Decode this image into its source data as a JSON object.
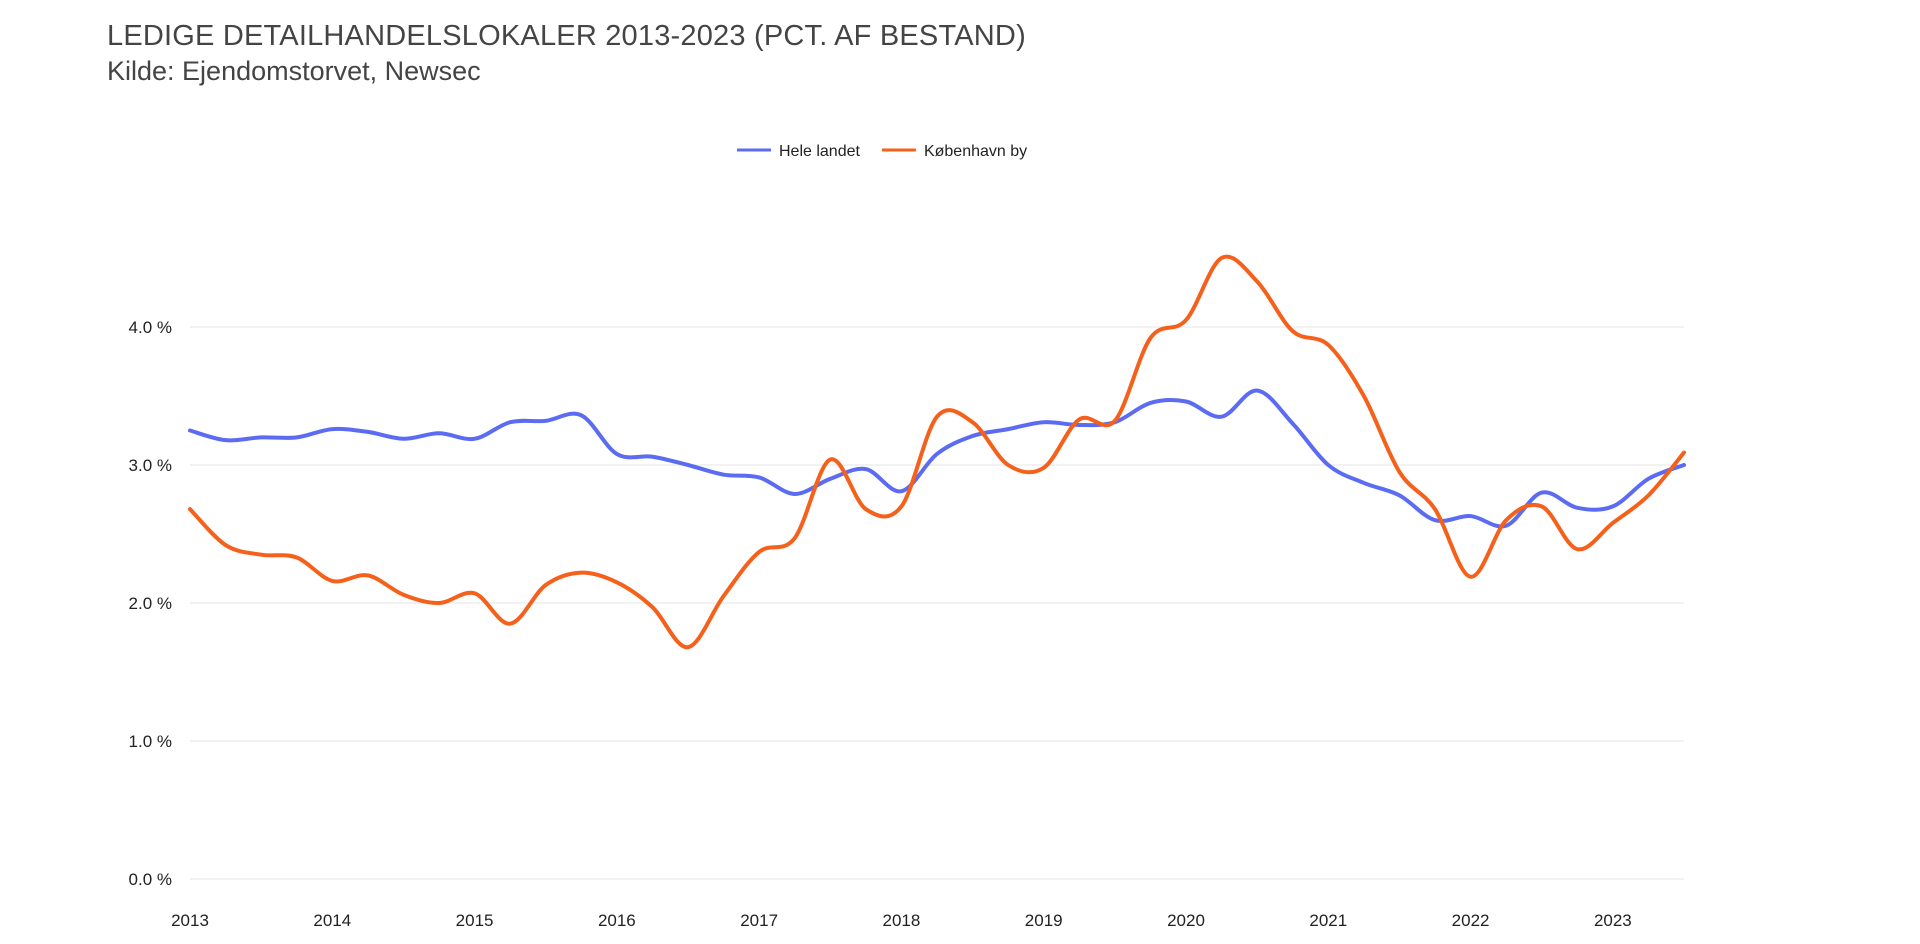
{
  "chart_data": {
    "type": "line",
    "title": "LEDIGE DETAILHANDELSLOKALER 2013-2023 (PCT. AF BESTAND)",
    "subtitle": "Kilde: Ejendomstorvet, Newsec",
    "xlabel": "",
    "ylabel": "",
    "xlim": [
      2013,
      2023.5
    ],
    "ylim": [
      0,
      4.8
    ],
    "grid": true,
    "legend_position": "top-center",
    "y_ticks": [
      0,
      1,
      2,
      3,
      4
    ],
    "y_tick_labels": [
      "0.0 %",
      "1.0 %",
      "2.0 %",
      "3.0 %",
      "4.0 %"
    ],
    "x_ticks": [
      2013,
      2014,
      2015,
      2016,
      2017,
      2018,
      2019,
      2020,
      2021,
      2022,
      2023
    ],
    "x_tick_labels": [
      "2013",
      "2014",
      "2015",
      "2016",
      "2017",
      "2018",
      "2019",
      "2020",
      "2021",
      "2022",
      "2023"
    ],
    "x": [
      2013.0,
      2013.25,
      2013.5,
      2013.75,
      2014.0,
      2014.25,
      2014.5,
      2014.75,
      2015.0,
      2015.25,
      2015.5,
      2015.75,
      2016.0,
      2016.25,
      2016.5,
      2016.75,
      2017.0,
      2017.25,
      2017.5,
      2017.75,
      2018.0,
      2018.25,
      2018.5,
      2018.75,
      2019.0,
      2019.25,
      2019.5,
      2019.75,
      2020.0,
      2020.25,
      2020.5,
      2020.75,
      2021.0,
      2021.25,
      2021.5,
      2021.75,
      2022.0,
      2022.25,
      2022.5,
      2022.75,
      2023.0,
      2023.25,
      2023.5
    ],
    "series": [
      {
        "name": "Hele landet",
        "color": "#5b6cf2",
        "values": [
          3.25,
          3.18,
          3.2,
          3.2,
          3.26,
          3.24,
          3.19,
          3.23,
          3.19,
          3.31,
          3.32,
          3.36,
          3.08,
          3.06,
          3.0,
          2.93,
          2.91,
          2.79,
          2.9,
          2.97,
          2.81,
          3.08,
          3.21,
          3.26,
          3.31,
          3.29,
          3.31,
          3.45,
          3.46,
          3.35,
          3.54,
          3.3,
          3.0,
          2.87,
          2.78,
          2.6,
          2.63,
          2.56,
          2.8,
          2.69,
          2.7,
          2.9,
          3.0
        ]
      },
      {
        "name": "København by",
        "color": "#f5601a",
        "values": [
          2.68,
          2.42,
          2.35,
          2.33,
          2.16,
          2.2,
          2.06,
          2.0,
          2.07,
          1.85,
          2.13,
          2.22,
          2.15,
          1.97,
          1.68,
          2.05,
          2.37,
          2.47,
          3.04,
          2.68,
          2.7,
          3.35,
          3.31,
          3.0,
          2.98,
          3.33,
          3.32,
          3.92,
          4.05,
          4.5,
          4.33,
          3.97,
          3.87,
          3.5,
          2.95,
          2.68,
          2.19,
          2.6,
          2.7,
          2.39,
          2.58,
          2.78,
          3.09
        ]
      }
    ]
  }
}
